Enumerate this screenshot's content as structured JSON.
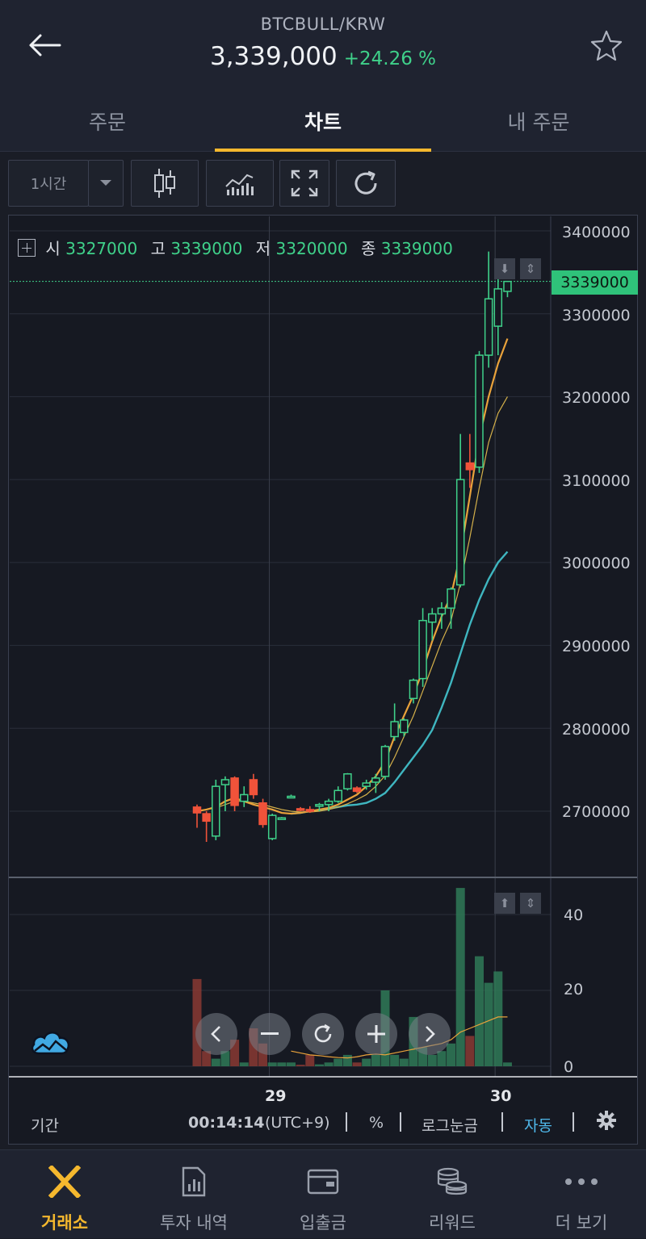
{
  "header": {
    "pair": "BTCBULL/KRW",
    "price": "3,339,000",
    "change": "+24.26 %"
  },
  "tabs": [
    {
      "label": "주문",
      "active": false
    },
    {
      "label": "차트",
      "active": true
    },
    {
      "label": "내 주문",
      "active": false
    }
  ],
  "toolbar": {
    "interval": "1시간"
  },
  "ohlc": {
    "open_label": "시",
    "open": "3327000",
    "high_label": "고",
    "high": "3339000",
    "low_label": "저",
    "low": "3320000",
    "close_label": "종",
    "close": "3339000"
  },
  "price_axis": [
    "3400000",
    "3300000",
    "3200000",
    "3100000",
    "3000000",
    "2900000",
    "2800000",
    "2700000"
  ],
  "current_price_tag": "3339000",
  "volume_axis": [
    "40",
    "20",
    "0"
  ],
  "time_axis": [
    "29",
    "30"
  ],
  "footer": {
    "period": "기간",
    "time": "00:14:14",
    "tz": "(UTC+9)",
    "percent": "%",
    "log": "로그눈금",
    "auto": "자동"
  },
  "bottom_nav": [
    {
      "label": "거래소",
      "icon": "exchange-x-icon",
      "active": true
    },
    {
      "label": "투자 내역",
      "icon": "report-icon",
      "active": false
    },
    {
      "label": "입출금",
      "icon": "wallet-icon",
      "active": false
    },
    {
      "label": "리워드",
      "icon": "coins-icon",
      "active": false
    },
    {
      "label": "더 보기",
      "icon": "more-icon",
      "active": false
    }
  ],
  "colors": {
    "up": "#3fd18a",
    "down": "#f0533a",
    "accent": "#f5b82e",
    "ma_short": "#e9a23b",
    "ma_mid": "#d4b04a",
    "ma_long": "#3fb6c0"
  },
  "chart_data": {
    "type": "candlestick",
    "ylim": [
      2650000,
      3400000
    ],
    "volume_ylim": [
      0,
      48
    ],
    "x_ticks": [
      {
        "label": "29",
        "index": 7
      },
      {
        "label": "30",
        "index": 31
      }
    ],
    "candles": [
      {
        "o": 2705000,
        "h": 2708000,
        "l": 2680000,
        "c": 2698000,
        "v": 23
      },
      {
        "o": 2697000,
        "h": 2700000,
        "l": 2663000,
        "c": 2688000,
        "v": 4
      },
      {
        "o": 2670000,
        "h": 2738000,
        "l": 2665000,
        "c": 2730000,
        "v": 2
      },
      {
        "o": 2732000,
        "h": 2742000,
        "l": 2700000,
        "c": 2738000,
        "v": 4
      },
      {
        "o": 2740000,
        "h": 2742000,
        "l": 2700000,
        "c": 2707000,
        "v": 7
      },
      {
        "o": 2712000,
        "h": 2730000,
        "l": 2705000,
        "c": 2720000,
        "v": 1
      },
      {
        "o": 2738000,
        "h": 2745000,
        "l": 2715000,
        "c": 2720000,
        "v": 10
      },
      {
        "o": 2710000,
        "h": 2715000,
        "l": 2680000,
        "c": 2684000,
        "v": 6
      },
      {
        "o": 2667000,
        "h": 2697000,
        "l": 2665000,
        "c": 2695000,
        "v": 1
      },
      {
        "o": 2692000,
        "h": 2693000,
        "l": 2690000,
        "c": 2692000,
        "v": 1
      },
      {
        "o": 2718000,
        "h": 2720000,
        "l": 2717000,
        "c": 2718000,
        "v": 1
      },
      {
        "o": 2703000,
        "h": 2705000,
        "l": 2700000,
        "c": 2702000,
        "v": 0.4
      },
      {
        "o": 2702000,
        "h": 2706000,
        "l": 2698000,
        "c": 2700000,
        "v": 3
      },
      {
        "o": 2706000,
        "h": 2710000,
        "l": 2700000,
        "c": 2708000,
        "v": 0.5
      },
      {
        "o": 2708000,
        "h": 2715000,
        "l": 2700000,
        "c": 2712000,
        "v": 1
      },
      {
        "o": 2712000,
        "h": 2730000,
        "l": 2710000,
        "c": 2725000,
        "v": 2
      },
      {
        "o": 2727000,
        "h": 2746000,
        "l": 2725000,
        "c": 2745000,
        "v": 3
      },
      {
        "o": 2728000,
        "h": 2730000,
        "l": 2722000,
        "c": 2724000,
        "v": 1
      },
      {
        "o": 2730000,
        "h": 2738000,
        "l": 2726000,
        "c": 2734000,
        "v": 2
      },
      {
        "o": 2735000,
        "h": 2745000,
        "l": 2722000,
        "c": 2740000,
        "v": 3
      },
      {
        "o": 2742000,
        "h": 2780000,
        "l": 2738000,
        "c": 2778000,
        "v": 20
      },
      {
        "o": 2790000,
        "h": 2830000,
        "l": 2785000,
        "c": 2808000,
        "v": 3
      },
      {
        "o": 2795000,
        "h": 2812000,
        "l": 2790000,
        "c": 2810000,
        "v": 2
      },
      {
        "o": 2836000,
        "h": 2860000,
        "l": 2830000,
        "c": 2858000,
        "v": 13
      },
      {
        "o": 2860000,
        "h": 2945000,
        "l": 2850000,
        "c": 2930000,
        "v": 5
      },
      {
        "o": 2928000,
        "h": 2945000,
        "l": 2906000,
        "c": 2938000,
        "v": 3
      },
      {
        "o": 2938000,
        "h": 2952000,
        "l": 2920000,
        "c": 2945000,
        "v": 4
      },
      {
        "o": 2945000,
        "h": 2970000,
        "l": 2920000,
        "c": 2968000,
        "v": 6
      },
      {
        "o": 2973000,
        "h": 3155000,
        "l": 2970000,
        "c": 3100000,
        "v": 47
      },
      {
        "o": 3120000,
        "h": 3155000,
        "l": 3090000,
        "c": 3112000,
        "v": 8
      },
      {
        "o": 3115000,
        "h": 3255000,
        "l": 3108000,
        "c": 3250000,
        "v": 29
      },
      {
        "o": 3250000,
        "h": 3375000,
        "l": 3235000,
        "c": 3318000,
        "v": 22
      },
      {
        "o": 3285000,
        "h": 3350000,
        "l": 3250000,
        "c": 3330000,
        "v": 25
      },
      {
        "o": 3327000,
        "h": 3339000,
        "l": 3320000,
        "c": 3339000,
        "v": 1
      }
    ],
    "ma_short": [
      2700000,
      2702000,
      2705000,
      2712000,
      2716000,
      2712000,
      2708000,
      2705000,
      2702000,
      2698000,
      2697000,
      2698000,
      2700000,
      2702000,
      2704000,
      2708000,
      2714000,
      2720000,
      2730000,
      2742000,
      2760000,
      2790000,
      2815000,
      2840000,
      2870000,
      2905000,
      2935000,
      2960000,
      3010000,
      3080000,
      3150000,
      3200000,
      3240000,
      3270000
    ],
    "ma_mid": [
      2700000,
      2702000,
      2704000,
      2708000,
      2712000,
      2712000,
      2710000,
      2708000,
      2705000,
      2702000,
      2700000,
      2699000,
      2699000,
      2700000,
      2702000,
      2705000,
      2709000,
      2714000,
      2720000,
      2730000,
      2743000,
      2765000,
      2790000,
      2815000,
      2845000,
      2875000,
      2905000,
      2930000,
      2975000,
      3030000,
      3090000,
      3145000,
      3180000,
      3200000
    ],
    "ma_long": [
      null,
      null,
      null,
      null,
      null,
      null,
      null,
      null,
      null,
      null,
      2697000,
      2698000,
      2700000,
      2701000,
      2703000,
      2705000,
      2707000,
      2708000,
      2710000,
      2715000,
      2722000,
      2735000,
      2750000,
      2765000,
      2780000,
      2798000,
      2825000,
      2855000,
      2890000,
      2925000,
      2955000,
      2980000,
      3000000,
      3013000
    ],
    "volume_ma": [
      null,
      null,
      null,
      null,
      null,
      null,
      null,
      null,
      null,
      null,
      4,
      3.5,
      3,
      2.8,
      2.5,
      2.3,
      2.2,
      2.5,
      3,
      3.2,
      3,
      3.5,
      4,
      4.5,
      5,
      5.5,
      6,
      7,
      9,
      10,
      11,
      12,
      13,
      13
    ]
  }
}
